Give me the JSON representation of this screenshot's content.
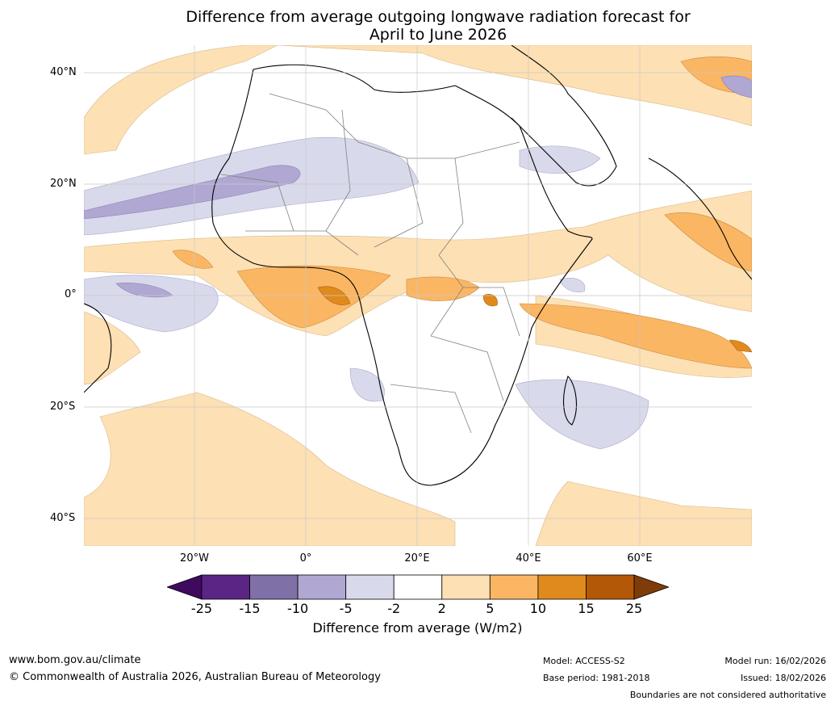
{
  "title_line1": "Difference from average outgoing longwave radiation forecast for",
  "title_line2": "April to June 2026",
  "lat_labels": [
    "40°N",
    "20°N",
    "0°",
    "20°S",
    "40°S"
  ],
  "lon_labels": [
    "20°W",
    "0°",
    "20°E",
    "40°E",
    "60°E"
  ],
  "colorbar": {
    "ticks": [
      "-25",
      "-15",
      "-10",
      "-5",
      "-2",
      "2",
      "5",
      "10",
      "15",
      "25"
    ],
    "colors": [
      "#3f0a5e",
      "#5a2585",
      "#8070a8",
      "#b0a8d2",
      "#d9d9ec",
      "#ffffff",
      "#fde0b4",
      "#fbb664",
      "#e08a1e",
      "#b35806",
      "#7f3b08"
    ],
    "label": "Difference from average (W/m2)"
  },
  "footer": {
    "url": "www.bom.gov.au/climate",
    "copyright": "© Commonwealth of Australia 2026, Australian Bureau of Meteorology",
    "model": "Model: ACCESS-S2",
    "base_period": "Base period: 1981-2018",
    "model_run": "Model run: 16/02/2026",
    "issued": "Issued: 18/02/2026",
    "boundaries": "Boundaries are not considered authoritative"
  }
}
